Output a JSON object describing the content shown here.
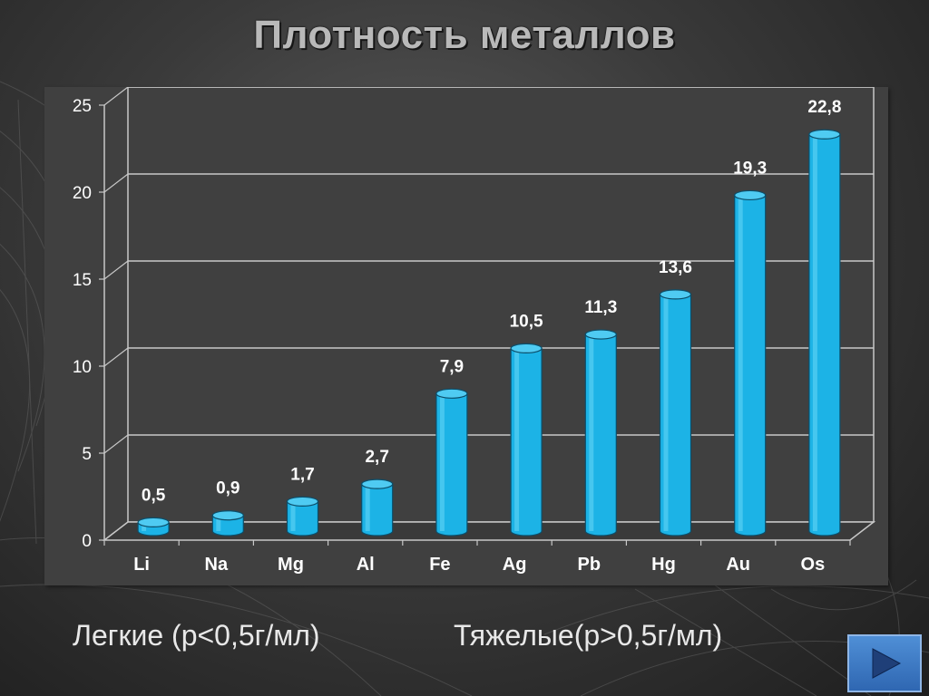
{
  "slide": {
    "title": "Плотность металлов",
    "light_label": "Легкие (р<0,5г/мл)",
    "heavy_label": "Тяжелые(р>0,5г/мл)"
  },
  "chart_data": {
    "type": "bar",
    "categories": [
      "Li",
      "Na",
      "Mg",
      "Al",
      "Fe",
      "Ag",
      "Pb",
      "Hg",
      "Au",
      "Os"
    ],
    "values": [
      0.5,
      0.9,
      1.7,
      2.7,
      7.9,
      10.5,
      11.3,
      13.6,
      19.3,
      22.8
    ],
    "value_labels": [
      "0,5",
      "0,9",
      "1,7",
      "2,7",
      "7,9",
      "10,5",
      "11,3",
      "13,6",
      "19,3",
      "22,8"
    ],
    "yticks": [
      0,
      5,
      10,
      15,
      20,
      25
    ],
    "ylim": [
      0,
      25
    ],
    "grid": true,
    "legend": "none",
    "bar_color": "#1cb3e6",
    "title": "",
    "xlabel": "",
    "ylabel": ""
  },
  "colors": {
    "panel": "#404040",
    "grid": "#c8c8c8",
    "bar": "#1cb3e6",
    "text": "#ffffff"
  },
  "nav": {
    "next_icon": "play-triangle-icon"
  }
}
